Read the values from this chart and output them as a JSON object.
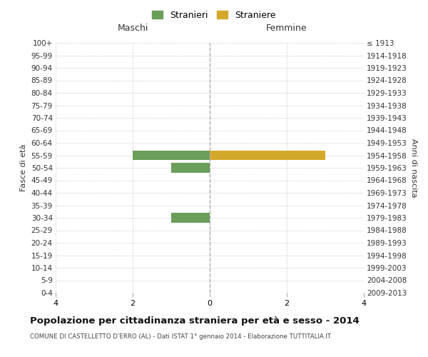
{
  "age_groups": [
    "100+",
    "95-99",
    "90-94",
    "85-89",
    "80-84",
    "75-79",
    "70-74",
    "65-69",
    "60-64",
    "55-59",
    "50-54",
    "45-49",
    "40-44",
    "35-39",
    "30-34",
    "25-29",
    "20-24",
    "15-19",
    "10-14",
    "5-9",
    "0-4"
  ],
  "birth_years": [
    "≤ 1913",
    "1914-1918",
    "1919-1923",
    "1924-1928",
    "1929-1933",
    "1934-1938",
    "1939-1943",
    "1944-1948",
    "1949-1953",
    "1954-1958",
    "1959-1963",
    "1964-1968",
    "1969-1973",
    "1974-1978",
    "1979-1983",
    "1984-1988",
    "1989-1993",
    "1994-1998",
    "1999-2003",
    "2004-2008",
    "2009-2013"
  ],
  "maschi_values": [
    0,
    0,
    0,
    0,
    0,
    0,
    0,
    0,
    0,
    2,
    1,
    0,
    0,
    0,
    1,
    0,
    0,
    0,
    0,
    0,
    0
  ],
  "femmine_values": [
    0,
    0,
    0,
    0,
    0,
    0,
    0,
    0,
    0,
    3,
    0,
    0,
    0,
    0,
    0,
    0,
    0,
    0,
    0,
    0,
    0
  ],
  "xlim": 4,
  "stranieri_color": "#6a9e5a",
  "straniere_color": "#d4a82a",
  "maschi_label": "Maschi",
  "femmine_label": "Femmine",
  "legend_stranieri": "Stranieri",
  "legend_straniere": "Straniere",
  "left_ylabel": "Fasce di età",
  "right_ylabel": "Anni di nascita",
  "title": "Popolazione per cittadinanza straniera per età e sesso - 2014",
  "subtitle": "COMUNE DI CASTELLETTO D'ERRO (AL) - Dati ISTAT 1° gennaio 2014 - Elaborazione TUTTITALIA.IT",
  "bg_color": "#ffffff",
  "grid_color": "#cccccc",
  "bar_height": 0.75
}
